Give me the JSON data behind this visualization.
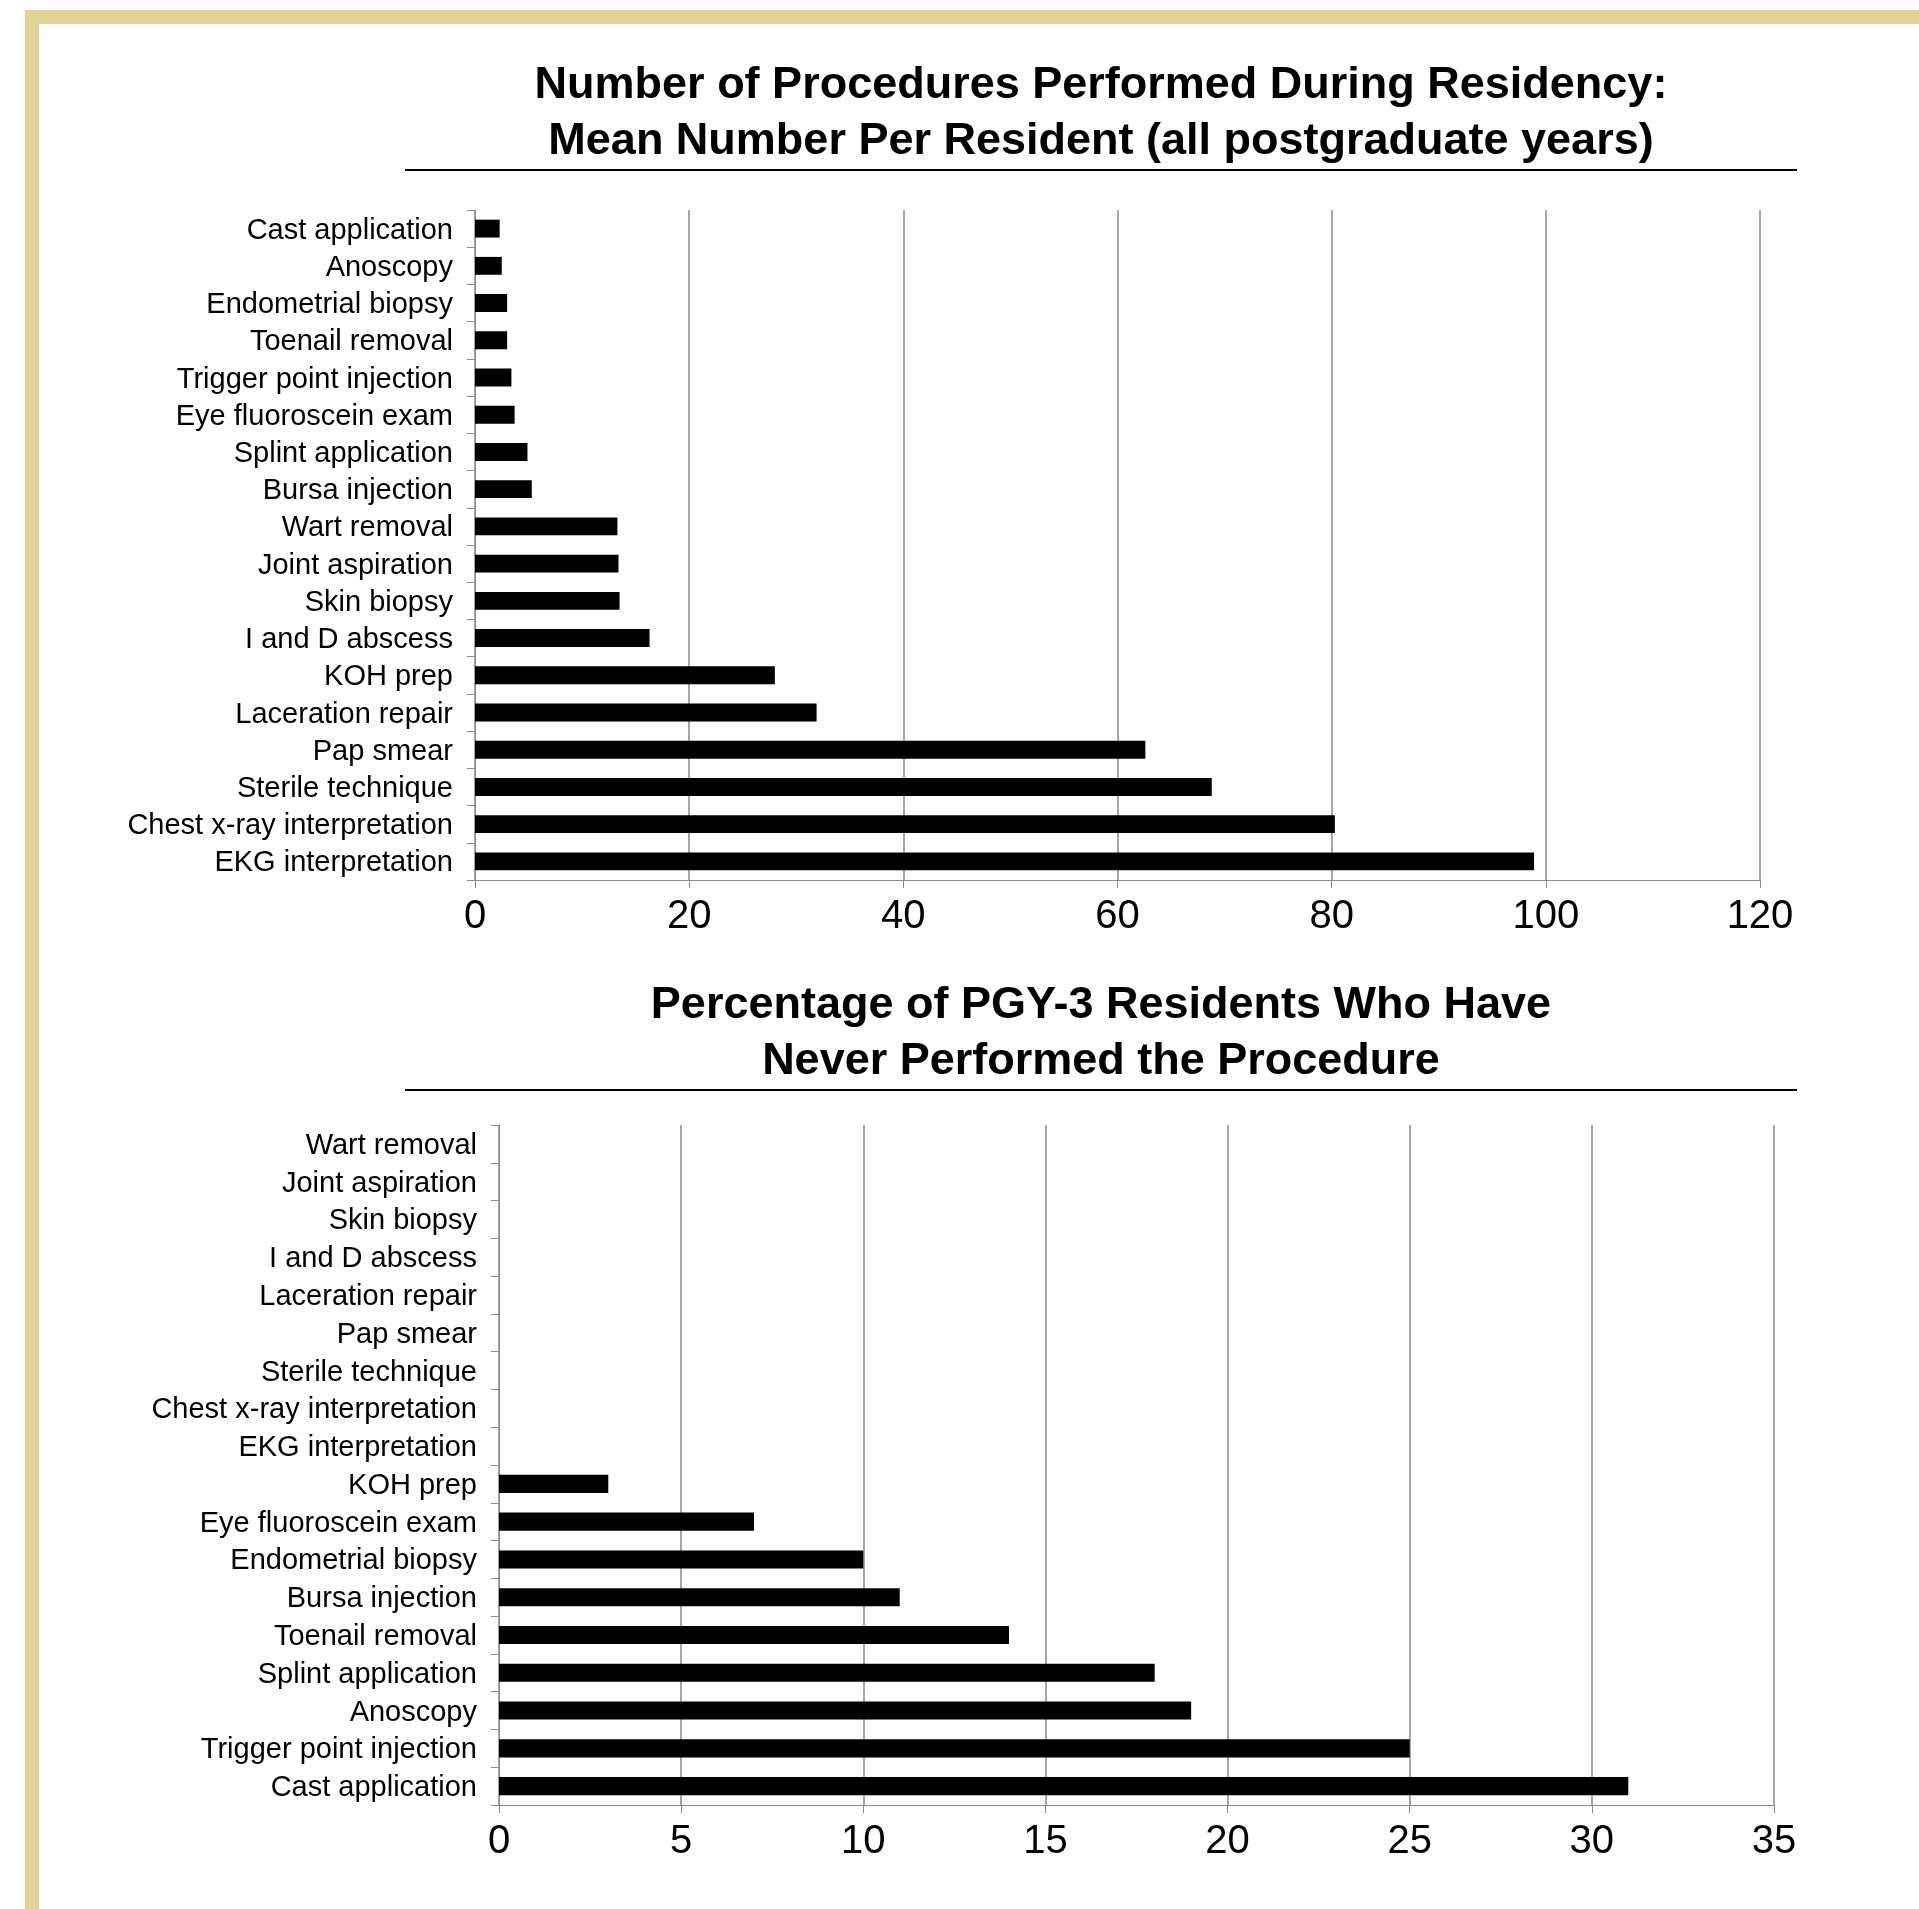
{
  "chart_data": [
    {
      "type": "bar",
      "orientation": "horizontal",
      "title": "Number of Procedures Performed During Residency:\nMean Number Per Resident (all postgraduate years)",
      "categories": [
        "Cast application",
        "Anoscopy",
        "Endometrial biopsy",
        "Toenail removal",
        "Trigger point injection",
        "Eye fluoroscein exam",
        "Splint application",
        "Bursa injection",
        "Wart removal",
        "Joint aspiration",
        "Skin biopsy",
        "I and D abscess",
        "KOH prep",
        "Laceration repair",
        "Pap smear",
        "Sterile technique",
        "Chest x-ray interpretation",
        "EKG interpretation"
      ],
      "values": [
        2.3,
        2.5,
        3,
        3,
        3.4,
        3.7,
        4.9,
        5.3,
        13.3,
        13.4,
        13.5,
        16.3,
        28,
        31.9,
        62.6,
        68.8,
        80.3,
        98.9
      ],
      "color": "#000000",
      "xlim": [
        0,
        120
      ],
      "xticks": [
        0,
        20,
        40,
        60,
        80,
        100,
        120
      ],
      "grid": "x"
    },
    {
      "type": "bar",
      "orientation": "horizontal",
      "title": "Percentage of PGY-3 Residents Who Have\nNever Performed the Procedure",
      "categories": [
        "Wart removal",
        "Joint aspiration",
        "Skin biopsy",
        "I and D abscess",
        "Laceration repair",
        "Pap smear",
        "Sterile technique",
        "Chest x-ray interpretation",
        "EKG interpretation",
        "KOH prep",
        "Eye fluoroscein exam",
        "Endometrial biopsy",
        "Bursa injection",
        "Toenail removal",
        "Splint application",
        "Anoscopy",
        "Trigger point injection",
        "Cast application"
      ],
      "values": [
        0,
        0,
        0,
        0,
        0,
        0,
        0,
        0,
        0,
        3,
        7,
        10,
        11,
        14,
        18,
        19,
        25,
        31
      ],
      "color": "#000000",
      "xlim": [
        0,
        35
      ],
      "xticks": [
        0,
        5,
        10,
        15,
        20,
        25,
        30,
        35
      ],
      "grid": "x"
    }
  ]
}
